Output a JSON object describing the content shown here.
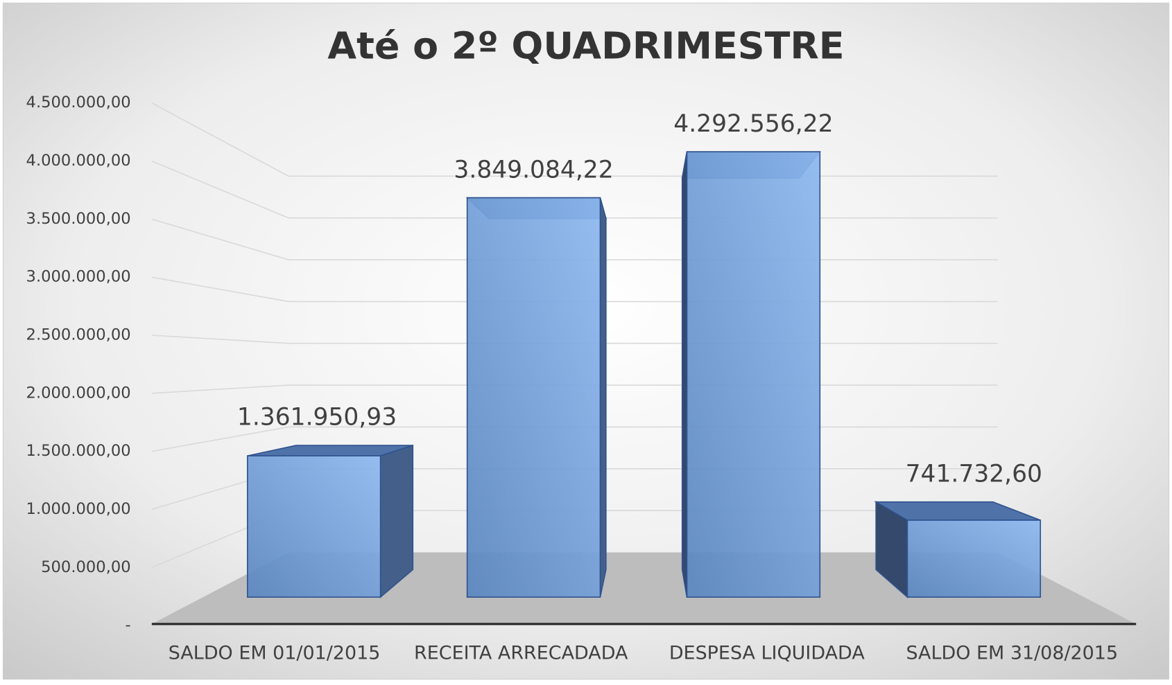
{
  "chart_data": {
    "type": "bar3d",
    "title": "Até o 2º QUADRIMESTRE",
    "categories": [
      "SALDO EM 01/01/2015",
      "RECEITA ARRECADADA",
      "DESPESA LIQUIDADA",
      "SALDO EM 31/08/2015"
    ],
    "values": [
      1361950.93,
      3849084.22,
      4292556.22,
      741732.6
    ],
    "value_labels": [
      "1.361.950,93",
      "3.849.084,22",
      "4.292.556,22",
      "741.732,60"
    ],
    "color": "#5b8fd0",
    "ylim": [
      0,
      4500000
    ],
    "yticks": [
      {
        "value": 0,
        "label": "-"
      },
      {
        "value": 500000,
        "label": "500.000,00"
      },
      {
        "value": 1000000,
        "label": "1.000.000,00"
      },
      {
        "value": 1500000,
        "label": "1.500.000,00"
      },
      {
        "value": 2000000,
        "label": "2.000.000,00"
      },
      {
        "value": 2500000,
        "label": "2.500.000,00"
      },
      {
        "value": 3000000,
        "label": "3.000.000,00"
      },
      {
        "value": 3500000,
        "label": "3.500.000,00"
      },
      {
        "value": 4000000,
        "label": "4.000.000,00"
      },
      {
        "value": 4500000,
        "label": "4.500.000,00"
      }
    ],
    "grid": true
  }
}
